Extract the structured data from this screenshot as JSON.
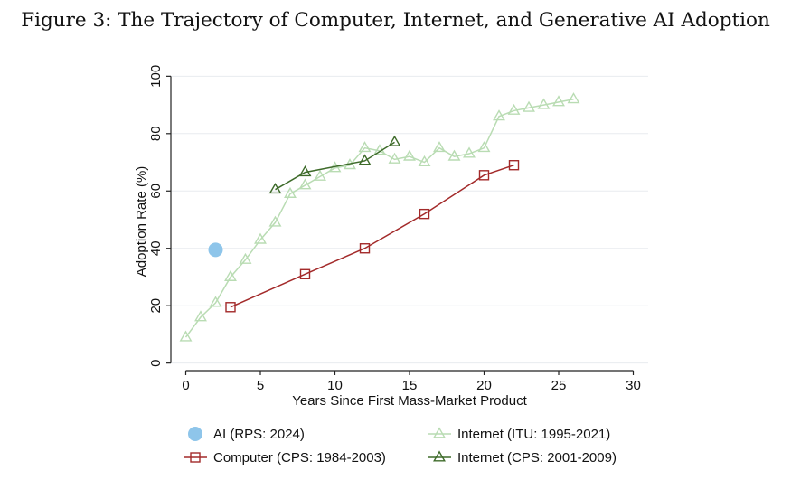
{
  "chart_data": {
    "type": "line",
    "title": "Figure 3: The Trajectory of Computer, Internet, and Generative AI Adoption",
    "xlabel": "Years Since First Mass-Market Product",
    "ylabel": "Adoption Rate (%)",
    "xlim": [
      -1,
      31
    ],
    "ylim": [
      -2,
      102
    ],
    "x_ticks": [
      0,
      5,
      10,
      15,
      20,
      25,
      30
    ],
    "y_ticks": [
      0,
      20,
      40,
      60,
      80,
      100
    ],
    "grid": "horizontal",
    "series": [
      {
        "name": "Internet (ITU: 1995-2021)",
        "marker": "triangle",
        "color": "#b9dcb3",
        "line": true,
        "x": [
          0,
          1,
          2,
          3,
          4,
          5,
          6,
          7,
          8,
          9,
          10,
          11,
          12,
          13,
          14,
          15,
          16,
          17,
          18,
          19,
          20,
          21,
          22,
          23,
          24,
          25,
          26
        ],
        "y": [
          9,
          16,
          21,
          30,
          36,
          43,
          49,
          59,
          62,
          65,
          68,
          69,
          75,
          74,
          71,
          72,
          70,
          75,
          72,
          73,
          75,
          86,
          88,
          89,
          90,
          91,
          92
        ]
      },
      {
        "name": "Internet (CPS: 2001-2009)",
        "marker": "triangle",
        "color": "#3e6b2a",
        "line": true,
        "x": [
          6,
          8,
          12,
          14
        ],
        "y": [
          60.5,
          66.5,
          70.5,
          77
        ]
      },
      {
        "name": "Computer (CPS: 1984-2003)",
        "marker": "square",
        "color": "#a32a2a",
        "line": true,
        "x": [
          3,
          8,
          12,
          16,
          20,
          22
        ],
        "y": [
          19.5,
          31,
          40,
          52,
          65.5,
          69
        ]
      },
      {
        "name": "AI (RPS: 2024)",
        "marker": "circle",
        "color": "#8ec5ea",
        "line": false,
        "x": [
          2
        ],
        "y": [
          39.5
        ]
      }
    ],
    "legend": {
      "position": "bottom",
      "left_column": [
        "AI (RPS: 2024)",
        "Computer (CPS: 1984-2003)"
      ],
      "right_column": [
        "Internet (ITU: 1995-2021)",
        "Internet (CPS: 2001-2009)"
      ]
    }
  }
}
